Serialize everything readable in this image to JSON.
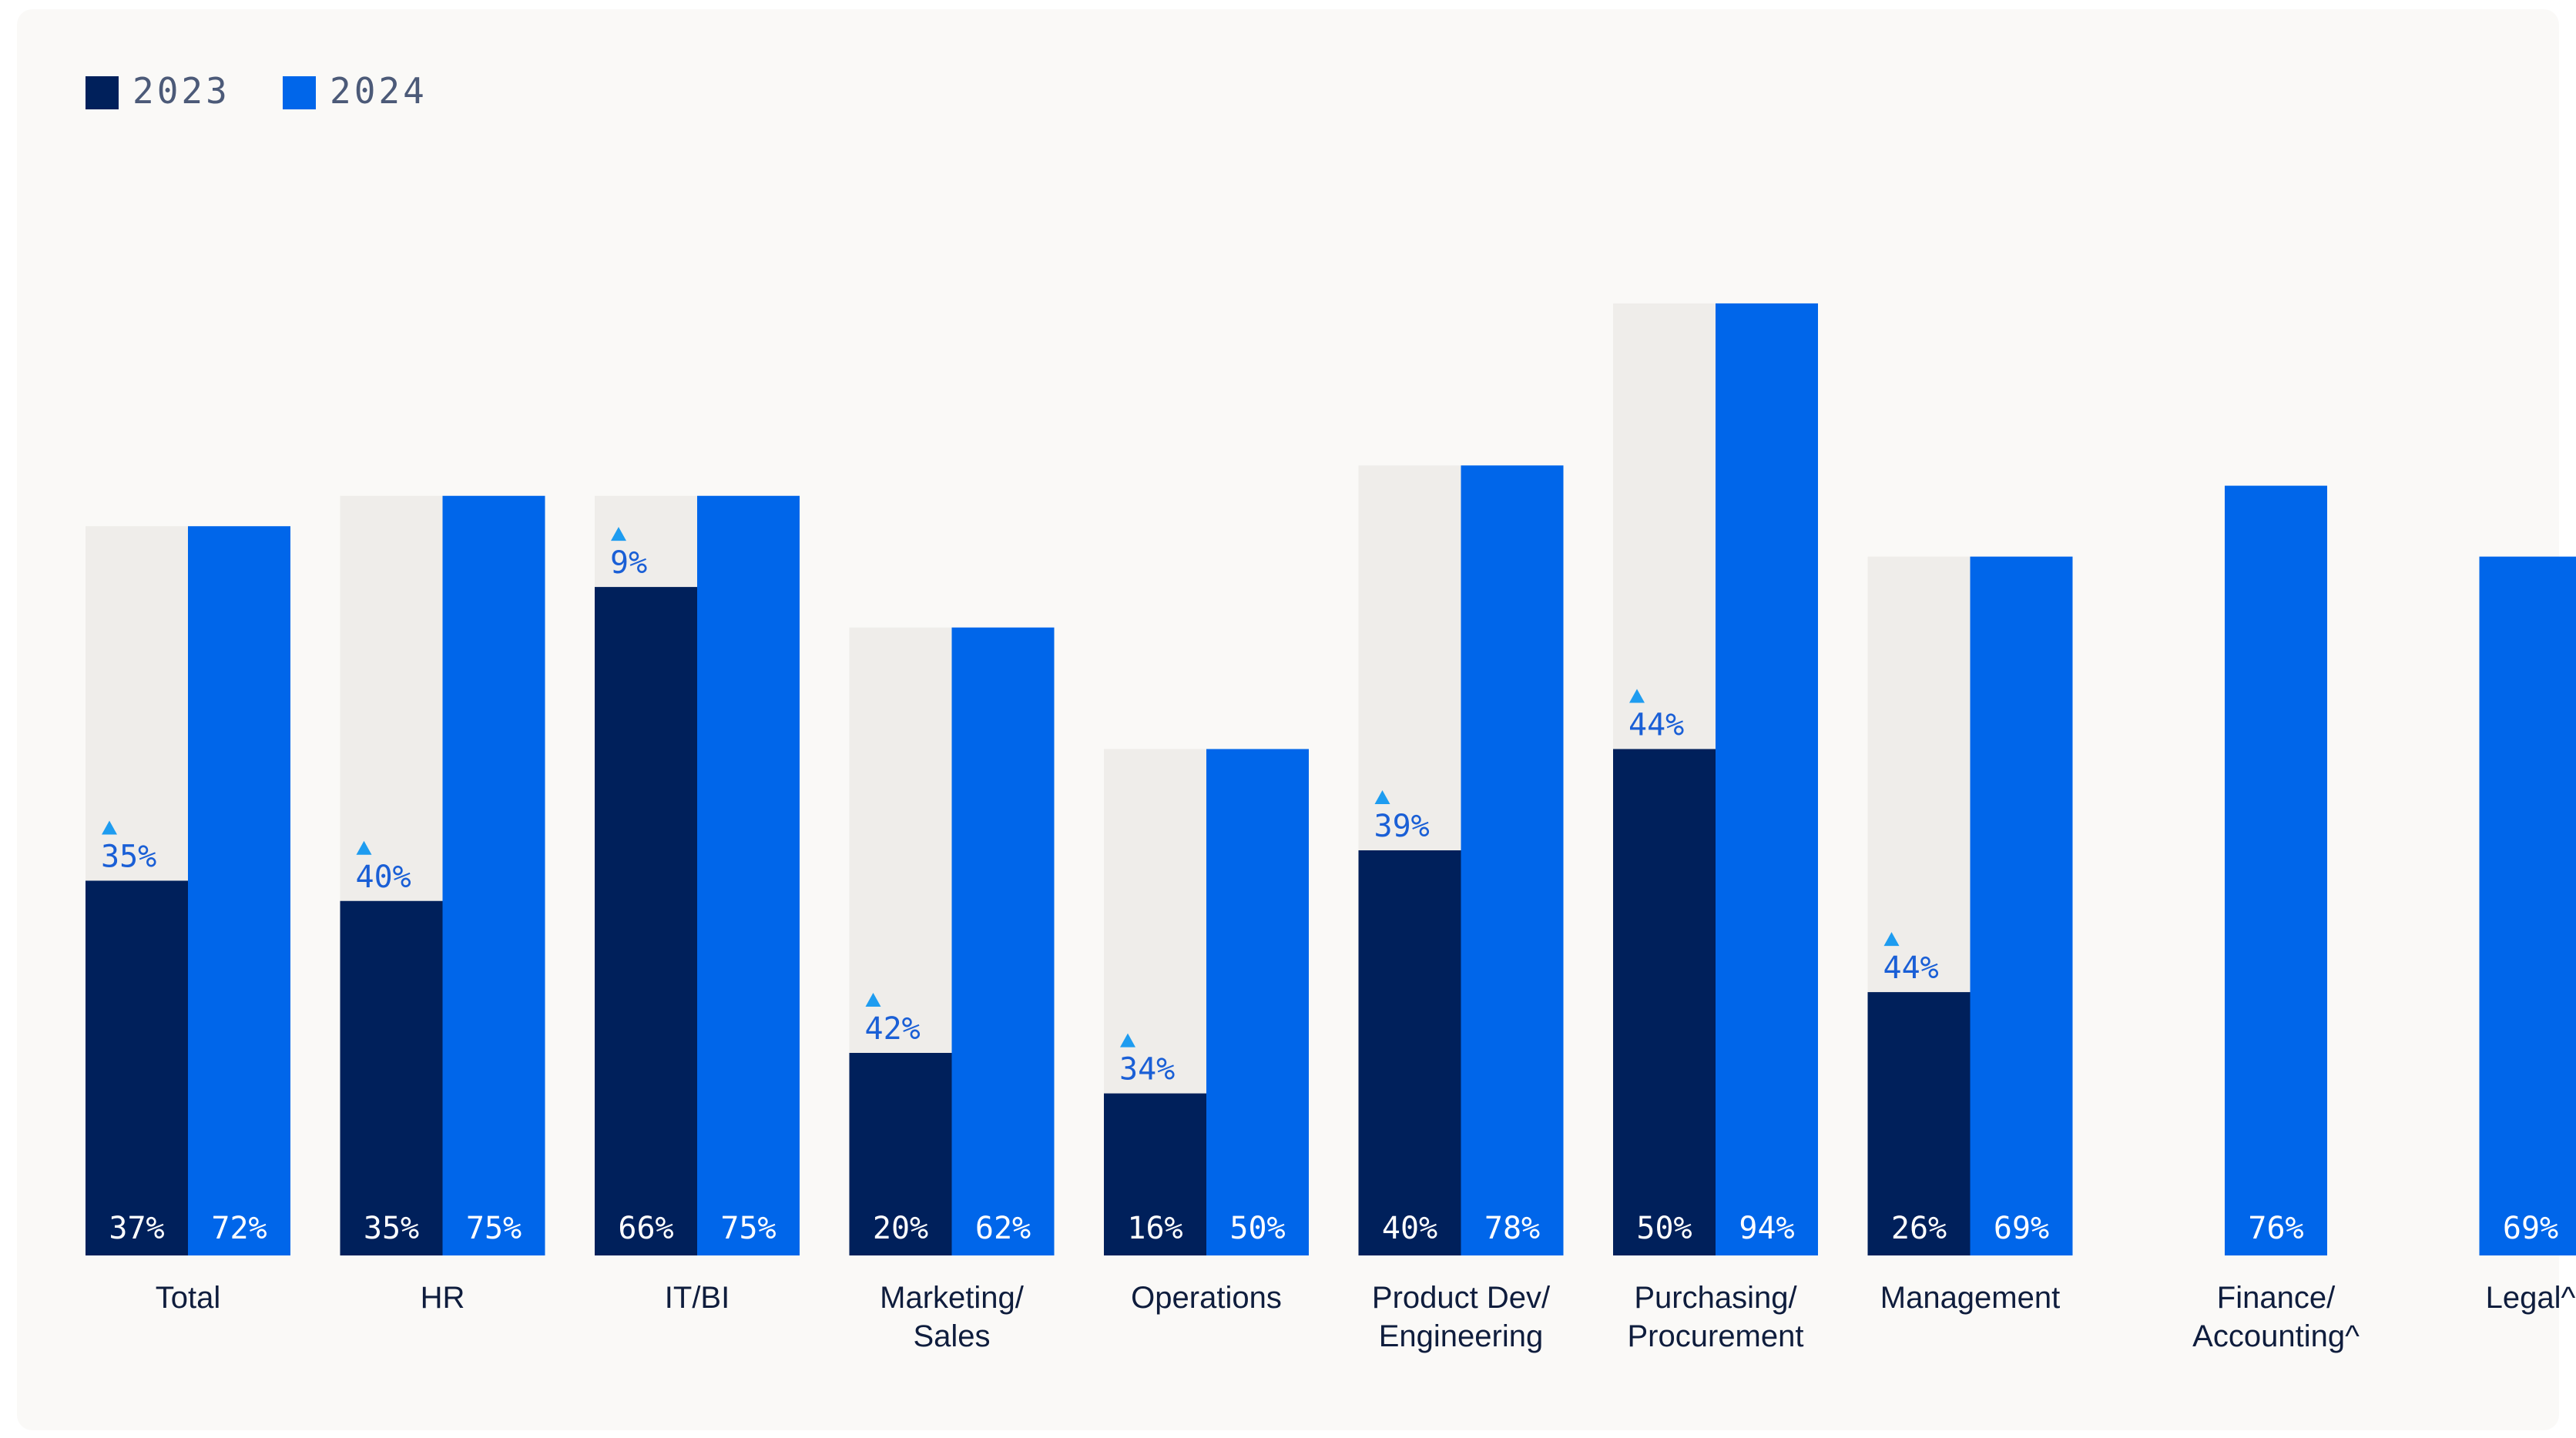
{
  "chart_data": {
    "type": "bar",
    "series": [
      {
        "name": "2023",
        "color": "#00205b",
        "values": [
          37,
          35,
          66,
          20,
          16,
          40,
          50,
          26,
          null,
          null
        ],
        "labels": [
          "37%",
          "35%",
          "66%",
          "20%",
          "16%",
          "40%",
          "50%",
          "26%",
          "",
          ""
        ]
      },
      {
        "name": "2024",
        "color": "#0066ea",
        "values": [
          72,
          75,
          75,
          62,
          50,
          78,
          94,
          69,
          76,
          69
        ],
        "labels": [
          "72%",
          "75%",
          "75%",
          "62%",
          "50%",
          "78%",
          "94%",
          "69%",
          "76%",
          "69%"
        ]
      }
    ],
    "categories": [
      [
        "Total"
      ],
      [
        "HR"
      ],
      [
        "IT/BI"
      ],
      [
        "Marketing/",
        "Sales"
      ],
      [
        "Operations"
      ],
      [
        "Product Dev/",
        "Engineering"
      ],
      [
        "Purchasing/",
        "Procurement"
      ],
      [
        "Management"
      ],
      [
        "Finance/",
        "Accounting^"
      ],
      [
        "Legal^"
      ]
    ],
    "increases": [
      35,
      40,
      9,
      42,
      34,
      39,
      44,
      44,
      null,
      null
    ],
    "increase_labels": [
      "35%",
      "40%",
      "9%",
      "42%",
      "34%",
      "39%",
      "44%",
      "44%",
      "",
      ""
    ],
    "ylim": [
      0,
      100
    ],
    "legend_position": "top-left",
    "grid": false,
    "colors": {
      "bar_2023": "#00205b",
      "bar_2024": "#0066ea",
      "gap": "#efedea",
      "increase_arrow": "#1e9cf0"
    }
  }
}
